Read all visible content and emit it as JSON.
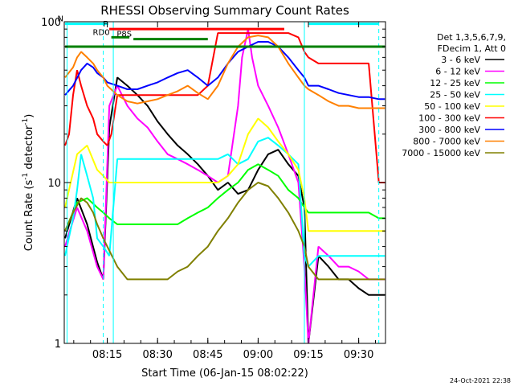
{
  "chart_data": {
    "type": "line",
    "title": "RHESSI Observing Summary Count Rates",
    "xlabel": "Start Time (06-Jan-15 08:02:22)",
    "ylabel": "Count Rate (s^-1 detector^-1)",
    "ylabel_main": "Count Rate (s",
    "ylabel_sup1": "-1",
    "ylabel_mid": " detector",
    "ylabel_sup2": "-1",
    "ylabel_end": ")",
    "yscale": "log",
    "ylim": [
      1,
      100
    ],
    "xlim": [
      8.0361,
      9.6333
    ],
    "x_unit": "hours",
    "x_ticks": [
      {
        "value": 8.25,
        "label": "08:15"
      },
      {
        "value": 8.5,
        "label": "08:30"
      },
      {
        "value": 8.75,
        "label": "08:45"
      },
      {
        "value": 9.0,
        "label": "09:00"
      },
      {
        "value": 9.25,
        "label": "09:15"
      },
      {
        "value": 9.5,
        "label": "09:30"
      }
    ],
    "y_ticks": [
      {
        "value": 1,
        "label": "1"
      },
      {
        "value": 10,
        "label": "10"
      },
      {
        "value": 100,
        "label": "100"
      }
    ],
    "legend_header": [
      "Det 1,3,5,6,7,9,",
      "FDecim 1, Att 0"
    ],
    "legend_position": "right",
    "series": [
      {
        "name": "3 - 6 keV",
        "color": "#000000",
        "x": [
          8.04,
          8.1,
          8.15,
          8.2,
          8.23,
          8.26,
          8.3,
          8.35,
          8.4,
          8.45,
          8.5,
          8.55,
          8.6,
          8.65,
          8.7,
          8.75,
          8.8,
          8.85,
          8.9,
          8.95,
          9.0,
          9.05,
          9.1,
          9.15,
          9.2,
          9.23,
          9.25,
          9.3,
          9.35,
          9.4,
          9.45,
          9.5,
          9.55,
          9.6,
          9.63
        ],
        "y": [
          4.5,
          8,
          5.5,
          3.2,
          2.5,
          22,
          45,
          40,
          35,
          30,
          24,
          20,
          17,
          15,
          13,
          11,
          9,
          10,
          8.5,
          9,
          12,
          15,
          16,
          13,
          11,
          7,
          1,
          3.5,
          3,
          2.5,
          2.5,
          2.2,
          2,
          2,
          2
        ]
      },
      {
        "name": "6 - 12 keV",
        "color": "#ff00ff",
        "x": [
          8.04,
          8.1,
          8.15,
          8.2,
          8.23,
          8.26,
          8.3,
          8.35,
          8.4,
          8.45,
          8.5,
          8.55,
          8.6,
          8.65,
          8.7,
          8.75,
          8.8,
          8.85,
          8.9,
          8.92,
          8.95,
          8.97,
          9.0,
          9.05,
          9.1,
          9.15,
          9.2,
          9.23,
          9.25,
          9.3,
          9.35,
          9.4,
          9.45,
          9.5,
          9.55,
          9.6,
          9.63
        ],
        "y": [
          4,
          7,
          5,
          3,
          2.5,
          30,
          40,
          30,
          25,
          22,
          18,
          15,
          14,
          13,
          12,
          11,
          10,
          11,
          30,
          60,
          90,
          60,
          40,
          30,
          22,
          15,
          10,
          3,
          1,
          4,
          3.5,
          3,
          3,
          2.8,
          2.5,
          2.5,
          2.5
        ]
      },
      {
        "name": "12 - 25 keV",
        "color": "#00ff00",
        "x": [
          8.04,
          8.1,
          8.15,
          8.2,
          8.23,
          8.26,
          8.3,
          8.35,
          8.4,
          8.45,
          8.5,
          8.55,
          8.6,
          8.65,
          8.7,
          8.75,
          8.8,
          8.85,
          8.9,
          8.95,
          9.0,
          9.05,
          9.1,
          9.15,
          9.2,
          9.23,
          9.25,
          9.3,
          9.35,
          9.4,
          9.45,
          9.5,
          9.55,
          9.6,
          9.63
        ],
        "y": [
          5,
          7.5,
          8,
          7,
          6.5,
          6,
          5.5,
          5.5,
          5.5,
          5.5,
          5.5,
          5.5,
          5.5,
          6,
          6.5,
          7,
          8,
          9,
          10,
          12,
          13,
          12,
          11,
          9,
          8,
          7,
          6.5,
          6.5,
          6.5,
          6.5,
          6.5,
          6.5,
          6.5,
          6,
          6
        ]
      },
      {
        "name": "25 - 50 keV",
        "color": "#00ffff",
        "x": [
          8.04,
          8.08,
          8.1,
          8.12,
          8.15,
          8.18,
          8.2,
          8.23,
          8.26,
          8.3,
          8.35,
          8.4,
          8.45,
          8.5,
          8.55,
          8.6,
          8.65,
          8.7,
          8.75,
          8.8,
          8.85,
          8.9,
          8.95,
          9.0,
          9.05,
          9.1,
          9.15,
          9.2,
          9.23,
          9.25,
          9.3,
          9.35,
          9.4,
          9.45,
          9.5,
          9.55,
          9.6,
          9.63
        ],
        "y": [
          3.5,
          6,
          9,
          15,
          11,
          8,
          4.5,
          4,
          3.5,
          14,
          14,
          14,
          14,
          14,
          14,
          14,
          14,
          14,
          14,
          14,
          15,
          13,
          14,
          18,
          19,
          17,
          15,
          13,
          3.5,
          3,
          3.5,
          3.5,
          3.5,
          3.5,
          3.5,
          3.5,
          3.5,
          3.5
        ]
      },
      {
        "name": "50 - 100 keV",
        "color": "#ffff00",
        "x": [
          8.04,
          8.1,
          8.15,
          8.2,
          8.23,
          8.26,
          8.3,
          8.35,
          8.4,
          8.45,
          8.5,
          8.55,
          8.6,
          8.65,
          8.7,
          8.75,
          8.8,
          8.85,
          8.9,
          8.95,
          9.0,
          9.05,
          9.1,
          9.15,
          9.2,
          9.23,
          9.25,
          9.3,
          9.35,
          9.4,
          9.45,
          9.5,
          9.55,
          9.6,
          9.63
        ],
        "y": [
          7,
          15,
          17,
          12,
          11,
          10,
          10,
          10,
          10,
          10,
          10,
          10,
          10,
          10,
          10,
          10,
          10,
          11,
          13,
          20,
          25,
          22,
          18,
          15,
          12,
          8,
          5,
          5,
          5,
          5,
          5,
          5,
          5,
          5,
          5
        ]
      },
      {
        "name": "100 - 300 keV",
        "color": "#ff0000",
        "x": [
          8.04,
          8.06,
          8.08,
          8.1,
          8.12,
          8.15,
          8.18,
          8.2,
          8.23,
          8.25,
          8.27,
          8.3,
          8.35,
          8.4,
          8.45,
          8.5,
          8.55,
          8.6,
          8.65,
          8.7,
          8.75,
          8.8,
          8.85,
          8.9,
          8.95,
          9.0,
          9.05,
          9.1,
          9.15,
          9.2,
          9.23,
          9.25,
          9.3,
          9.35,
          9.4,
          9.45,
          9.5,
          9.55,
          9.6,
          9.63
        ],
        "y": [
          17,
          20,
          35,
          50,
          40,
          30,
          25,
          20,
          18,
          17,
          20,
          35,
          35,
          35,
          35,
          35,
          35,
          35,
          35,
          35,
          40,
          85,
          85,
          85,
          85,
          85,
          85,
          85,
          85,
          80,
          65,
          60,
          55,
          55,
          55,
          55,
          55,
          55,
          10,
          10
        ]
      },
      {
        "name": "300 - 800 keV",
        "color": "#0000ff",
        "x": [
          8.04,
          8.08,
          8.12,
          8.15,
          8.18,
          8.2,
          8.23,
          8.25,
          8.3,
          8.35,
          8.4,
          8.45,
          8.5,
          8.55,
          8.6,
          8.65,
          8.7,
          8.75,
          8.8,
          8.85,
          8.9,
          8.95,
          9.0,
          9.05,
          9.1,
          9.15,
          9.2,
          9.23,
          9.25,
          9.3,
          9.35,
          9.4,
          9.45,
          9.5,
          9.55,
          9.6,
          9.63
        ],
        "y": [
          35,
          40,
          50,
          55,
          52,
          48,
          45,
          42,
          40,
          38,
          38,
          40,
          42,
          45,
          48,
          50,
          45,
          40,
          45,
          55,
          65,
          70,
          75,
          75,
          70,
          60,
          50,
          45,
          40,
          40,
          38,
          36,
          35,
          34,
          34,
          33,
          33
        ]
      },
      {
        "name": "800 - 7000 keV",
        "color": "#ff8000",
        "x": [
          8.04,
          8.08,
          8.1,
          8.12,
          8.15,
          8.18,
          8.2,
          8.23,
          8.25,
          8.3,
          8.35,
          8.4,
          8.45,
          8.5,
          8.55,
          8.6,
          8.65,
          8.7,
          8.75,
          8.8,
          8.85,
          8.9,
          8.95,
          9.0,
          9.05,
          9.1,
          9.15,
          9.2,
          9.23,
          9.25,
          9.3,
          9.35,
          9.4,
          9.45,
          9.5,
          9.55,
          9.6,
          9.63
        ],
        "y": [
          45,
          52,
          60,
          65,
          60,
          55,
          50,
          45,
          40,
          35,
          32,
          31,
          32,
          33,
          35,
          37,
          40,
          36,
          33,
          40,
          55,
          70,
          80,
          82,
          80,
          70,
          55,
          45,
          40,
          38,
          35,
          32,
          30,
          30,
          29,
          29,
          29,
          29
        ]
      },
      {
        "name": "7000 - 15000 keV",
        "color": "#808000",
        "x": [
          8.04,
          8.08,
          8.12,
          8.15,
          8.18,
          8.2,
          8.23,
          8.25,
          8.3,
          8.35,
          8.4,
          8.45,
          8.5,
          8.55,
          8.6,
          8.65,
          8.7,
          8.75,
          8.8,
          8.85,
          8.9,
          8.95,
          9.0,
          9.05,
          9.1,
          9.15,
          9.2,
          9.23,
          9.25,
          9.3,
          9.35,
          9.4,
          9.45,
          9.5,
          9.55,
          9.6,
          9.63
        ],
        "y": [
          5,
          6.5,
          8,
          7.5,
          6.5,
          5.5,
          4.5,
          4,
          3,
          2.5,
          2.5,
          2.5,
          2.5,
          2.5,
          2.8,
          3,
          3.5,
          4,
          5,
          6,
          7.5,
          9,
          10,
          9.5,
          8,
          6.5,
          5,
          4,
          3,
          2.5,
          2.5,
          2.5,
          2.5,
          2.5,
          2.5,
          2.5,
          2.5
        ]
      }
    ],
    "flag_lines": [
      {
        "label": "N",
        "color": "#00ffff",
        "level": 97,
        "segments": [
          [
            8.04,
            8.255
          ],
          [
            9.25,
            9.6
          ]
        ]
      },
      {
        "label": "F",
        "color": "#ff0000",
        "level": 90,
        "segments": [
          [
            8.26,
            9.13
          ]
        ]
      },
      {
        "label": "RD0",
        "color": "#008000",
        "level": 80,
        "segments": [
          [
            8.27,
            8.36
          ]
        ]
      },
      {
        "label": "P8S",
        "color": "#008000",
        "level": 78,
        "segments": [
          [
            8.38,
            8.75
          ]
        ]
      },
      {
        "label": "",
        "color": "#008000",
        "level": 70,
        "segments": [
          [
            8.04,
            9.63
          ]
        ]
      }
    ],
    "vertical_markers": [
      {
        "x": 8.05,
        "color": "#00ffff",
        "style": "solid"
      },
      {
        "x": 8.23,
        "color": "#00ffff",
        "style": "dashed"
      },
      {
        "x": 8.28,
        "color": "#00ffff",
        "style": "solid"
      },
      {
        "x": 9.23,
        "color": "#00ffff",
        "style": "solid"
      },
      {
        "x": 9.6,
        "color": "#00ffff",
        "style": "dashed"
      }
    ],
    "timestamp": "24-Oct-2021 22:38"
  }
}
